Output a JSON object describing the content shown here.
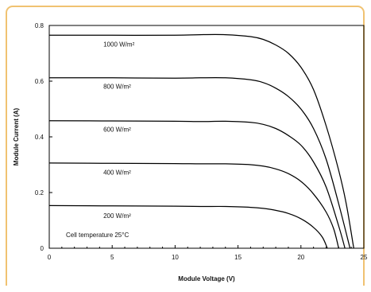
{
  "chart_data": {
    "type": "line",
    "xlabel": "Module Voltage (V)",
    "ylabel": "Module Current (A)",
    "xlim": [
      0,
      25
    ],
    "ylim": [
      0,
      0.8
    ],
    "x_ticks": [
      "0",
      "5",
      "10",
      "15",
      "20",
      "25"
    ],
    "y_ticks": [
      "0",
      "0.2",
      "0.4",
      "0.6",
      "0.8"
    ],
    "grid": false,
    "annotation": "Cell temperature 25°C",
    "series": [
      {
        "name": "1000 W/m²",
        "label_at": [
          4.3,
          0.725
        ],
        "points": [
          [
            0,
            0.765
          ],
          [
            5,
            0.765
          ],
          [
            10,
            0.765
          ],
          [
            12,
            0.767
          ],
          [
            14,
            0.767
          ],
          [
            16,
            0.76
          ],
          [
            17,
            0.75
          ],
          [
            18,
            0.73
          ],
          [
            19,
            0.7
          ],
          [
            20,
            0.65
          ],
          [
            21,
            0.57
          ],
          [
            22,
            0.44
          ],
          [
            23,
            0.28
          ],
          [
            23.6,
            0.16
          ],
          [
            24.2,
            0.0
          ]
        ]
      },
      {
        "name": "800 W/m²",
        "label_at": [
          4.3,
          0.573
        ],
        "points": [
          [
            0,
            0.612
          ],
          [
            5,
            0.612
          ],
          [
            10,
            0.611
          ],
          [
            12,
            0.612
          ],
          [
            14,
            0.612
          ],
          [
            16,
            0.605
          ],
          [
            17,
            0.595
          ],
          [
            18,
            0.575
          ],
          [
            19,
            0.545
          ],
          [
            20,
            0.5
          ],
          [
            21,
            0.43
          ],
          [
            22,
            0.32
          ],
          [
            23,
            0.16
          ],
          [
            23.9,
            0.0
          ]
        ]
      },
      {
        "name": "600 W/m²",
        "label_at": [
          4.3,
          0.418
        ],
        "points": [
          [
            0,
            0.458
          ],
          [
            5,
            0.457
          ],
          [
            10,
            0.456
          ],
          [
            12,
            0.455
          ],
          [
            14,
            0.456
          ],
          [
            16,
            0.452
          ],
          [
            17,
            0.445
          ],
          [
            18,
            0.43
          ],
          [
            19,
            0.405
          ],
          [
            20,
            0.37
          ],
          [
            21,
            0.31
          ],
          [
            22,
            0.22
          ],
          [
            23,
            0.08
          ],
          [
            23.5,
            0.0
          ]
        ]
      },
      {
        "name": "400 W/m²",
        "label_at": [
          4.3,
          0.265
        ],
        "points": [
          [
            0,
            0.306
          ],
          [
            5,
            0.305
          ],
          [
            10,
            0.304
          ],
          [
            12,
            0.303
          ],
          [
            14,
            0.303
          ],
          [
            16,
            0.3
          ],
          [
            17,
            0.295
          ],
          [
            18,
            0.285
          ],
          [
            19,
            0.268
          ],
          [
            20,
            0.24
          ],
          [
            21,
            0.195
          ],
          [
            22,
            0.13
          ],
          [
            22.6,
            0.07
          ],
          [
            23.0,
            0.0
          ]
        ]
      },
      {
        "name": "200 W/m²",
        "label_at": [
          4.3,
          0.108
        ],
        "points": [
          [
            0,
            0.153
          ],
          [
            5,
            0.152
          ],
          [
            10,
            0.151
          ],
          [
            12,
            0.15
          ],
          [
            14,
            0.15
          ],
          [
            16,
            0.147
          ],
          [
            17,
            0.143
          ],
          [
            18,
            0.136
          ],
          [
            19,
            0.125
          ],
          [
            20,
            0.106
          ],
          [
            21,
            0.075
          ],
          [
            21.7,
            0.04
          ],
          [
            22.1,
            0.0
          ]
        ]
      }
    ]
  }
}
